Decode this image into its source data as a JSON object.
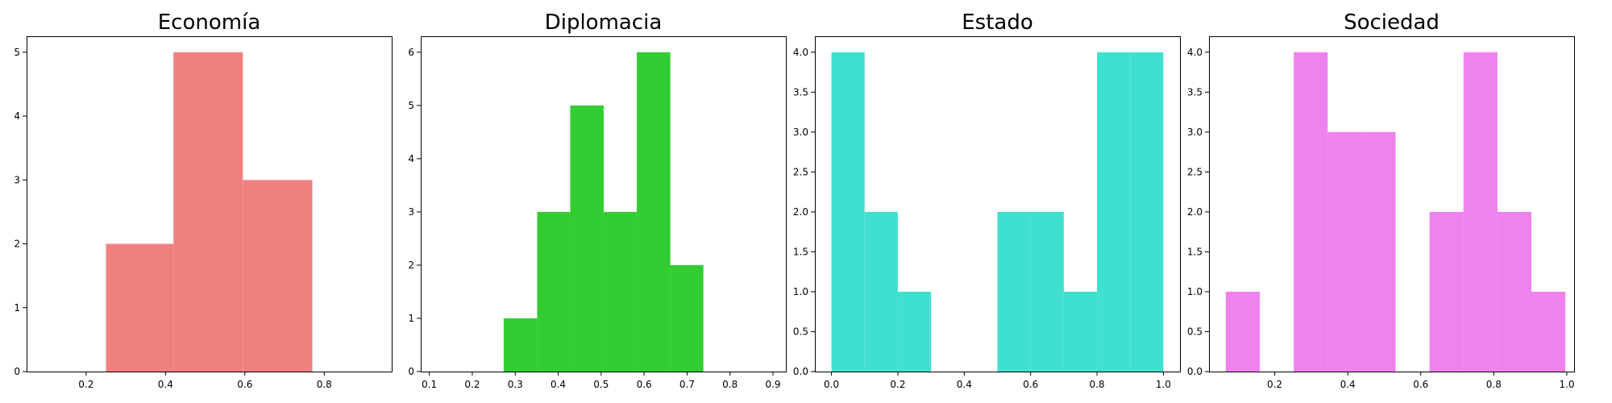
{
  "chart_data": [
    {
      "type": "bar",
      "title": "Economía",
      "color": "#f08080",
      "xlim": [
        0.05,
        0.97
      ],
      "ylim": [
        0,
        5.25
      ],
      "xticks": [
        0.2,
        0.4,
        0.6,
        0.8
      ],
      "xtick_labels": [
        "0.2",
        "0.4",
        "0.6",
        "0.8"
      ],
      "yticks": [
        0,
        1,
        2,
        3,
        4,
        5
      ],
      "ytick_labels": [
        "0",
        "1",
        "2",
        "3",
        "4",
        "5"
      ],
      "bins": [
        {
          "x0": 0.25,
          "x1": 0.42,
          "count": 2
        },
        {
          "x0": 0.42,
          "x1": 0.595,
          "count": 5
        },
        {
          "x0": 0.595,
          "x1": 0.77,
          "count": 3
        }
      ]
    },
    {
      "type": "bar",
      "title": "Diplomacia",
      "color": "#32cd32",
      "xlim": [
        0.08,
        0.93
      ],
      "ylim": [
        0,
        6.3
      ],
      "xticks": [
        0.1,
        0.2,
        0.3,
        0.4,
        0.5,
        0.6,
        0.7,
        0.8,
        0.9
      ],
      "xtick_labels": [
        "0.1",
        "0.2",
        "0.3",
        "0.4",
        "0.5",
        "0.6",
        "0.7",
        "0.8",
        "0.9"
      ],
      "yticks": [
        0,
        1,
        2,
        3,
        4,
        5,
        6
      ],
      "ytick_labels": [
        "0",
        "1",
        "2",
        "3",
        "4",
        "5",
        "6"
      ],
      "bins": [
        {
          "x0": 0.273,
          "x1": 0.351,
          "count": 1
        },
        {
          "x0": 0.351,
          "x1": 0.428,
          "count": 3
        },
        {
          "x0": 0.428,
          "x1": 0.506,
          "count": 5
        },
        {
          "x0": 0.506,
          "x1": 0.583,
          "count": 3
        },
        {
          "x0": 0.583,
          "x1": 0.661,
          "count": 6
        },
        {
          "x0": 0.661,
          "x1": 0.738,
          "count": 2
        }
      ]
    },
    {
      "type": "bar",
      "title": "Estado",
      "color": "#40e0d0",
      "xlim": [
        -0.05,
        1.05
      ],
      "ylim": [
        0,
        4.2
      ],
      "xticks": [
        0.0,
        0.2,
        0.4,
        0.6,
        0.8,
        1.0
      ],
      "xtick_labels": [
        "0.0",
        "0.2",
        "0.4",
        "0.6",
        "0.8",
        "1.0"
      ],
      "yticks": [
        0,
        0.5,
        1,
        1.5,
        2,
        2.5,
        3,
        3.5,
        4
      ],
      "ytick_labels": [
        "0.0",
        "0.5",
        "1.0",
        "1.5",
        "2.0",
        "2.5",
        "3.0",
        "3.5",
        "4.0"
      ],
      "bins": [
        {
          "x0": 0.0,
          "x1": 0.1,
          "count": 4
        },
        {
          "x0": 0.1,
          "x1": 0.2,
          "count": 2
        },
        {
          "x0": 0.2,
          "x1": 0.3,
          "count": 1
        },
        {
          "x0": 0.5,
          "x1": 0.6,
          "count": 2
        },
        {
          "x0": 0.6,
          "x1": 0.7,
          "count": 2
        },
        {
          "x0": 0.7,
          "x1": 0.8,
          "count": 1
        },
        {
          "x0": 0.8,
          "x1": 0.9,
          "count": 4
        },
        {
          "x0": 0.9,
          "x1": 1.0,
          "count": 4
        }
      ]
    },
    {
      "type": "bar",
      "title": "Sociedad",
      "color": "#ee82ee",
      "xlim": [
        0.02,
        1.02
      ],
      "ylim": [
        0,
        4.2
      ],
      "xticks": [
        0.2,
        0.4,
        0.6,
        0.8,
        1.0
      ],
      "xtick_labels": [
        "0.2",
        "0.4",
        "0.6",
        "0.8",
        "1.0"
      ],
      "yticks": [
        0,
        0.5,
        1,
        1.5,
        2,
        2.5,
        3,
        3.5,
        4
      ],
      "ytick_labels": [
        "0.0",
        "0.5",
        "1.0",
        "1.5",
        "2.0",
        "2.5",
        "3.0",
        "3.5",
        "4.0"
      ],
      "bins": [
        {
          "x0": 0.066,
          "x1": 0.159,
          "count": 1
        },
        {
          "x0": 0.252,
          "x1": 0.345,
          "count": 4
        },
        {
          "x0": 0.345,
          "x1": 0.438,
          "count": 3
        },
        {
          "x0": 0.438,
          "x1": 0.531,
          "count": 3
        },
        {
          "x0": 0.624,
          "x1": 0.717,
          "count": 2
        },
        {
          "x0": 0.717,
          "x1": 0.81,
          "count": 4
        },
        {
          "x0": 0.81,
          "x1": 0.903,
          "count": 2
        },
        {
          "x0": 0.903,
          "x1": 0.996,
          "count": 1
        }
      ]
    }
  ]
}
